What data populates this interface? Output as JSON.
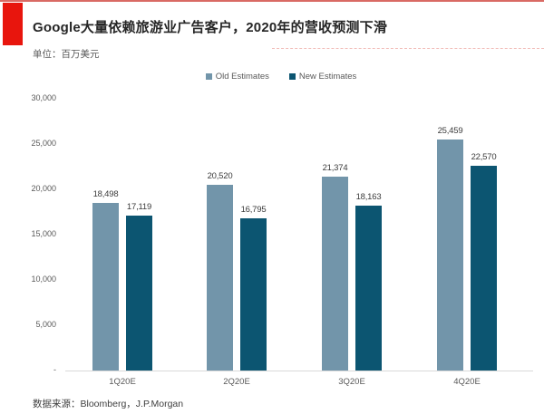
{
  "accent": {
    "block_red": "#e8150d",
    "top_line_red": "#d96a64",
    "axis_gray": "#d9d9d9"
  },
  "header": {
    "title": "Google大量依赖旅游业广告客户，2020年的营收预测下滑",
    "unit_label": "单位：百万美元"
  },
  "footer": {
    "source": "数据来源：Bloomberg，J.P.Morgan"
  },
  "chart_data": {
    "type": "bar",
    "title": "Google大量依赖旅游业广告客户，2020年的营收预测下滑",
    "xlabel": "",
    "ylabel": "百万美元",
    "ylim": [
      0,
      30000
    ],
    "ytick_interval": 5000,
    "ytick_labels": [
      "-",
      "5,000",
      "10,000",
      "15,000",
      "20,000",
      "25,000",
      "30,000"
    ],
    "grid": false,
    "legend_position": "top-center",
    "categories": [
      "1Q20E",
      "2Q20E",
      "3Q20E",
      "4Q20E"
    ],
    "series": [
      {
        "name": "Old Estimates",
        "color": "#7295aa",
        "values": [
          18498,
          20520,
          21374,
          25459
        ],
        "labels": [
          "18,498",
          "20,520",
          "21,374",
          "25,459"
        ]
      },
      {
        "name": "New Estimates",
        "color": "#0c5571",
        "values": [
          17119,
          16795,
          18163,
          22570
        ],
        "labels": [
          "17,119",
          "16,795",
          "18,163",
          "22,570"
        ]
      }
    ]
  }
}
